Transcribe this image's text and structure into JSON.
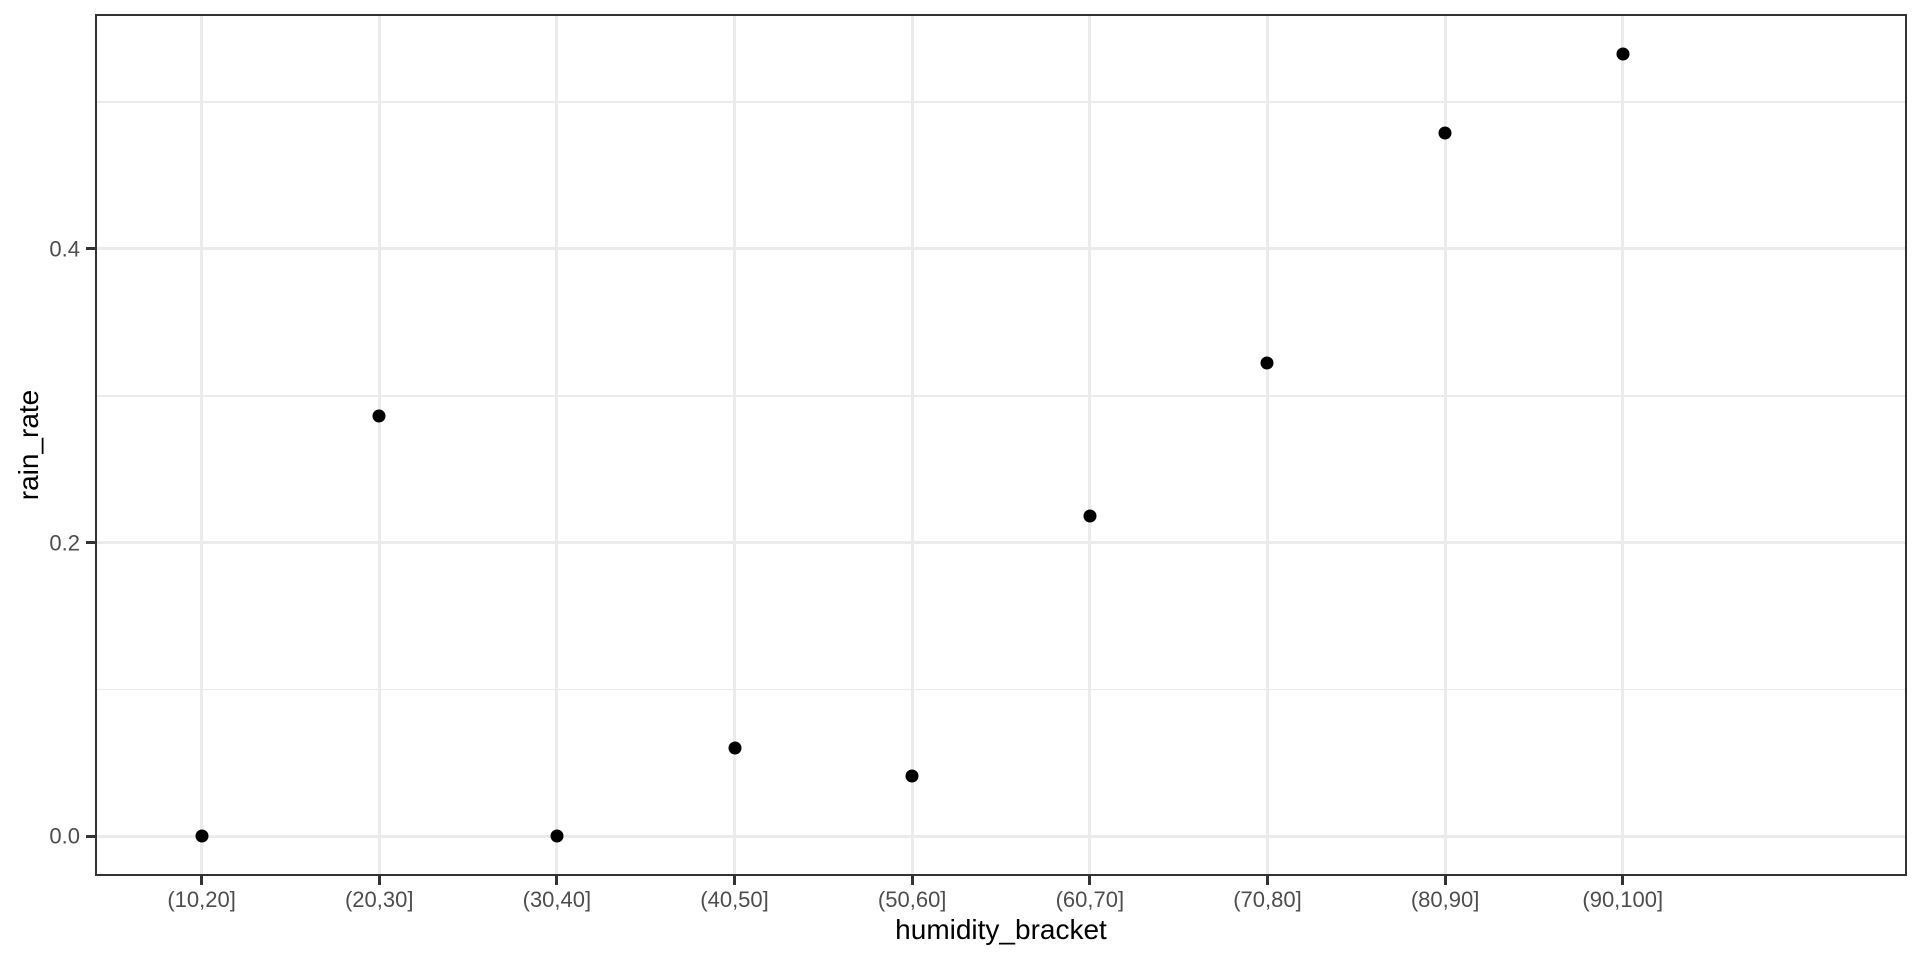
{
  "chart_data": {
    "type": "scatter",
    "title": "",
    "xlabel": "humidity_bracket",
    "ylabel": "rain_rate",
    "x_axis_type": "categorical",
    "categories": [
      "(10,20]",
      "(20,30]",
      "(30,40]",
      "(40,50]",
      "(50,60]",
      "(60,70]",
      "(70,80]",
      "(80,90]",
      "(90,100]"
    ],
    "values": [
      0.0,
      0.286,
      0.0,
      0.06,
      0.041,
      0.218,
      0.322,
      0.479,
      0.533
    ],
    "y_ticks": [
      0.0,
      0.2,
      0.4
    ],
    "y_tick_labels": [
      "0.0",
      "0.2",
      "0.4"
    ],
    "y_minor_ticks": [
      0.1,
      0.3,
      0.5
    ],
    "ylim": [
      -0.027,
      0.56
    ],
    "grid": "major+minor",
    "legend": "none",
    "colors": {
      "point": "#000000",
      "grid": "#ebebeb",
      "panel_border": "#333333",
      "tick_mark": "#333333",
      "tick_label": "#4d4d4d",
      "axis_title": "#000000",
      "background": "#ffffff"
    }
  }
}
